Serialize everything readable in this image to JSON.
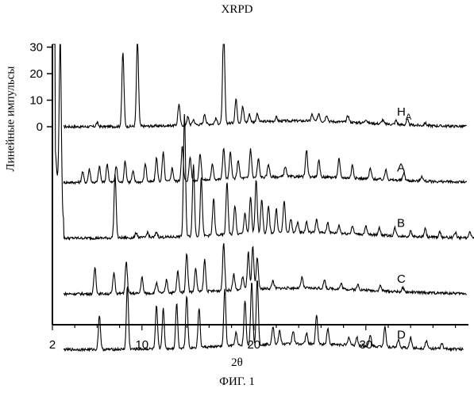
{
  "title": "XRPD",
  "caption": "ФИГ. 1",
  "chart_data": {
    "type": "line",
    "title": "XRPD",
    "xlabel": "2θ",
    "ylabel": "Линейные импульсы",
    "xlim": [
      2,
      40
    ],
    "xticks": [
      {
        "value": 2,
        "label": "2"
      },
      {
        "value": 10,
        "label": "10"
      },
      {
        "value": 20,
        "label": "20"
      },
      {
        "value": 30,
        "label": "30"
      }
    ],
    "yticks": [
      {
        "value": 0,
        "label": "0"
      },
      {
        "value": 10,
        "label": "10"
      },
      {
        "value": 20,
        "label": "20"
      },
      {
        "value": 30,
        "label": "30"
      }
    ],
    "ylim": [
      0,
      30
    ],
    "grid": false,
    "series": [
      {
        "name": "HA",
        "label_main": "H",
        "label_sub": "A",
        "x_start": 3.0,
        "x_end": 39.0,
        "baseline": 0,
        "peaks": [
          [
            6.0,
            1.5
          ],
          [
            8.3,
            28
          ],
          [
            9.6,
            33
          ],
          [
            13.3,
            8
          ],
          [
            14.1,
            3
          ],
          [
            14.6,
            2
          ],
          [
            15.6,
            4
          ],
          [
            16.6,
            2
          ],
          [
            17.3,
            38
          ],
          [
            18.4,
            9
          ],
          [
            19.0,
            6
          ],
          [
            19.6,
            3
          ],
          [
            20.3,
            3
          ],
          [
            22.0,
            1.5
          ],
          [
            25.2,
            2.5
          ],
          [
            25.8,
            3
          ],
          [
            26.5,
            2.5
          ],
          [
            28.4,
            2.5
          ],
          [
            30.0,
            1.5
          ],
          [
            31.5,
            1.5
          ],
          [
            32.7,
            1.5
          ],
          [
            33.7,
            2
          ],
          [
            35.3,
            1
          ]
        ]
      },
      {
        "name": "A",
        "x_start": 3.0,
        "x_end": 39.0,
        "baseline": -21,
        "peaks": [
          [
            4.7,
            4
          ],
          [
            5.3,
            5
          ],
          [
            6.2,
            6
          ],
          [
            6.9,
            7
          ],
          [
            7.7,
            6
          ],
          [
            8.5,
            8
          ],
          [
            9.2,
            4
          ],
          [
            10.3,
            7
          ],
          [
            11.3,
            9
          ],
          [
            11.9,
            11
          ],
          [
            12.7,
            5
          ],
          [
            13.6,
            13
          ],
          [
            14.3,
            9
          ],
          [
            15.2,
            10
          ],
          [
            16.3,
            6
          ],
          [
            17.3,
            12
          ],
          [
            17.9,
            10
          ],
          [
            18.6,
            7
          ],
          [
            19.7,
            11
          ],
          [
            20.4,
            7
          ],
          [
            21.3,
            5
          ],
          [
            22.8,
            4
          ],
          [
            24.7,
            10
          ],
          [
            25.8,
            6
          ],
          [
            27.6,
            7
          ],
          [
            28.8,
            5
          ],
          [
            30.4,
            4
          ],
          [
            31.8,
            4
          ],
          [
            33.4,
            3
          ],
          [
            35.0,
            2
          ]
        ]
      },
      {
        "name": "B",
        "x_start": 2.0,
        "x_end": 40.0,
        "baseline": -42,
        "peaks": [
          [
            2.7,
            62
          ],
          [
            7.6,
            24
          ],
          [
            9.5,
            2
          ],
          [
            10.5,
            2
          ],
          [
            11.3,
            2
          ],
          [
            13.8,
            46
          ],
          [
            14.6,
            27
          ],
          [
            15.3,
            22
          ],
          [
            16.4,
            14
          ],
          [
            17.6,
            20
          ],
          [
            18.3,
            11
          ],
          [
            19.2,
            8
          ],
          [
            19.7,
            14
          ],
          [
            20.2,
            20
          ],
          [
            20.7,
            13
          ],
          [
            21.3,
            10
          ],
          [
            22.0,
            9
          ],
          [
            22.7,
            12
          ],
          [
            23.3,
            5
          ],
          [
            23.9,
            4
          ],
          [
            24.7,
            4
          ],
          [
            25.6,
            5
          ],
          [
            26.6,
            4
          ],
          [
            27.6,
            3
          ],
          [
            28.8,
            3
          ],
          [
            30.0,
            3
          ],
          [
            31.2,
            3
          ],
          [
            32.6,
            3
          ],
          [
            34.0,
            2
          ],
          [
            35.3,
            3
          ],
          [
            36.6,
            2
          ],
          [
            38.0,
            2
          ],
          [
            39.3,
            2
          ]
        ]
      },
      {
        "name": "C",
        "x_start": 3.0,
        "x_end": 39.0,
        "baseline": -63,
        "peaks": [
          [
            5.8,
            10
          ],
          [
            7.5,
            8
          ],
          [
            8.6,
            12
          ],
          [
            10.0,
            6
          ],
          [
            11.3,
            4
          ],
          [
            12.2,
            5
          ],
          [
            13.2,
            8
          ],
          [
            14.0,
            15
          ],
          [
            14.8,
            9
          ],
          [
            15.6,
            12
          ],
          [
            17.3,
            18
          ],
          [
            18.2,
            6
          ],
          [
            19.0,
            5
          ],
          [
            19.5,
            14
          ],
          [
            19.9,
            16
          ],
          [
            20.3,
            12
          ],
          [
            21.7,
            3
          ],
          [
            24.3,
            4
          ],
          [
            26.3,
            3
          ],
          [
            27.8,
            2
          ],
          [
            29.3,
            2
          ],
          [
            31.3,
            2
          ],
          [
            33.3,
            1.5
          ]
        ]
      },
      {
        "name": "D",
        "x_start": 3.0,
        "x_end": 38.7,
        "baseline": -84,
        "peaks": [
          [
            6.2,
            13
          ],
          [
            8.7,
            24
          ],
          [
            11.3,
            16
          ],
          [
            11.9,
            15
          ],
          [
            13.1,
            17
          ],
          [
            14.0,
            20
          ],
          [
            15.1,
            15
          ],
          [
            17.4,
            22
          ],
          [
            18.4,
            5
          ],
          [
            19.2,
            17
          ],
          [
            19.8,
            24
          ],
          [
            20.3,
            25
          ],
          [
            21.7,
            7
          ],
          [
            22.3,
            5
          ],
          [
            23.5,
            5
          ],
          [
            24.7,
            4
          ],
          [
            25.6,
            11
          ],
          [
            26.6,
            6
          ],
          [
            28.5,
            3
          ],
          [
            29.2,
            3
          ],
          [
            30.4,
            4
          ],
          [
            31.7,
            8
          ],
          [
            32.9,
            3
          ],
          [
            34.0,
            4
          ],
          [
            35.4,
            3
          ],
          [
            36.8,
            2
          ]
        ]
      }
    ]
  }
}
